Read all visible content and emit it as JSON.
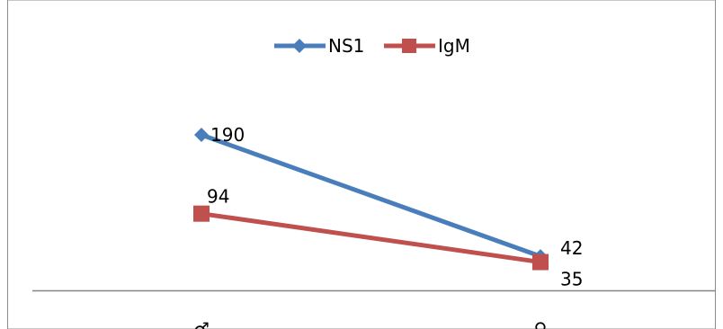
{
  "chart_data": {
    "type": "line",
    "categories": [
      "♂",
      "♀"
    ],
    "series": [
      {
        "name": "NS1",
        "values": [
          190,
          42
        ],
        "color": "#4a7ebb",
        "marker": "diamond"
      },
      {
        "name": "IgM",
        "values": [
          94,
          35
        ],
        "color": "#c0504d",
        "marker": "square"
      }
    ],
    "ylim": [
      0,
      210
    ],
    "grid": false,
    "legend": "top-center",
    "data_labels": true
  }
}
